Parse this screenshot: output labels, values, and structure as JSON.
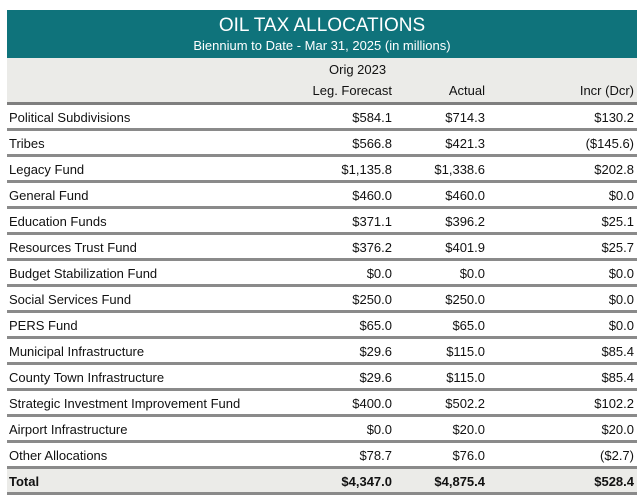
{
  "title": "OIL TAX ALLOCATIONS",
  "subtitle": "Biennium to Date - Mar 31, 2025 (in millions)",
  "headers": {
    "forecast_line1": "Orig 2023",
    "forecast_line2": "Leg. Forecast",
    "actual": "Actual",
    "incr": "Incr (Dcr)"
  },
  "rows": [
    {
      "label": "Political Subdivisions",
      "forecast": "$584.1",
      "actual": "$714.3",
      "incr": "$130.2"
    },
    {
      "label": "Tribes",
      "forecast": "$566.8",
      "actual": "$421.3",
      "incr": "($145.6)"
    },
    {
      "label": "Legacy Fund",
      "forecast": "$1,135.8",
      "actual": "$1,338.6",
      "incr": "$202.8"
    },
    {
      "label": "General Fund",
      "forecast": "$460.0",
      "actual": "$460.0",
      "incr": "$0.0"
    },
    {
      "label": "Education Funds",
      "forecast": "$371.1",
      "actual": "$396.2",
      "incr": "$25.1"
    },
    {
      "label": "Resources Trust Fund",
      "forecast": "$376.2",
      "actual": "$401.9",
      "incr": "$25.7"
    },
    {
      "label": "Budget Stabilization Fund",
      "forecast": "$0.0",
      "actual": "$0.0",
      "incr": "$0.0"
    },
    {
      "label": "Social Services Fund",
      "forecast": "$250.0",
      "actual": "$250.0",
      "incr": "$0.0"
    },
    {
      "label": "PERS Fund",
      "forecast": "$65.0",
      "actual": "$65.0",
      "incr": "$0.0"
    },
    {
      "label": "Municipal Infrastructure",
      "forecast": "$29.6",
      "actual": "$115.0",
      "incr": "$85.4"
    },
    {
      "label": "County Town Infrastructure",
      "forecast": "$29.6",
      "actual": "$115.0",
      "incr": "$85.4"
    },
    {
      "label": "Strategic Investment Improvement Fund",
      "forecast": "$400.0",
      "actual": "$502.2",
      "incr": "$102.2"
    },
    {
      "label": "Airport Infrastructure",
      "forecast": "$0.0",
      "actual": "$20.0",
      "incr": "$20.0"
    },
    {
      "label": "Other Allocations",
      "forecast": "$78.7",
      "actual": "$76.0",
      "incr": "($2.7)"
    }
  ],
  "total": {
    "label": "Total",
    "forecast": "$4,347.0",
    "actual": "$4,875.4",
    "incr": "$528.4"
  }
}
